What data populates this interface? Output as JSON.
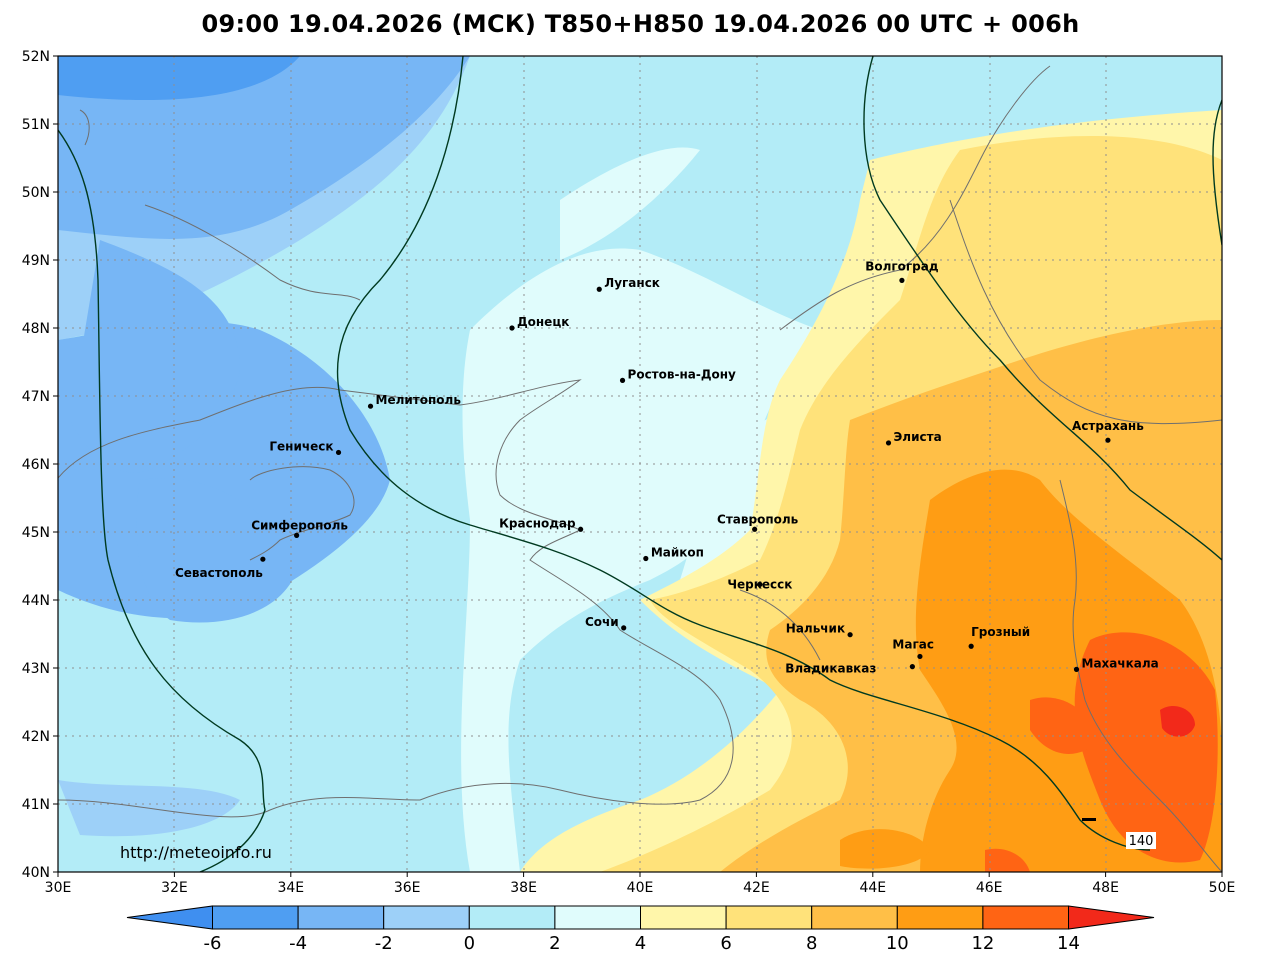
{
  "title": "09:00 19.04.2026 (МСК) T850+H850 19.04.2026 00 UTC + 006h",
  "source_url": "http://meteoinfo.ru",
  "contour_label": "140",
  "lat_ticks": [
    "52N",
    "51N",
    "50N",
    "49N",
    "48N",
    "47N",
    "46N",
    "45N",
    "44N",
    "43N",
    "42N",
    "41N",
    "40N"
  ],
  "lon_ticks": [
    "30E",
    "32E",
    "34E",
    "36E",
    "38E",
    "40E",
    "42E",
    "44E",
    "46E",
    "48E",
    "50E"
  ],
  "extent": {
    "lon_min": 30,
    "lon_max": 50,
    "lat_min": 40,
    "lat_max": 52
  },
  "colorbar": {
    "labels": [
      "-6",
      "-4",
      "-2",
      "0",
      "2",
      "4",
      "6",
      "8",
      "10",
      "12",
      "14"
    ],
    "colors": [
      "#3f8ff0",
      "#4f9ef2",
      "#77b6f5",
      "#9dd0f8",
      "#b3ecf7",
      "#e0fcfc",
      "#fff6aa",
      "#ffe27a",
      "#ffbf47",
      "#ff9d14",
      "#ff6414",
      "#f2291a"
    ]
  },
  "cities": [
    {
      "name": "Волгоград",
      "lon": 44.5,
      "lat": 48.7
    },
    {
      "name": "Луганск",
      "lon": 39.3,
      "lat": 48.57
    },
    {
      "name": "Донецк",
      "lon": 37.8,
      "lat": 48.0
    },
    {
      "name": "Ростов-на-Дону",
      "lon": 39.7,
      "lat": 47.23
    },
    {
      "name": "Мелитополь",
      "lon": 35.37,
      "lat": 46.85
    },
    {
      "name": "Геническ",
      "lon": 34.82,
      "lat": 46.17
    },
    {
      "name": "Элиста",
      "lon": 44.27,
      "lat": 46.31
    },
    {
      "name": "Астрахань",
      "lon": 48.04,
      "lat": 46.35
    },
    {
      "name": "Краснодар",
      "lon": 38.98,
      "lat": 45.04
    },
    {
      "name": "Ставрополь",
      "lon": 41.97,
      "lat": 45.04
    },
    {
      "name": "Симферополь",
      "lon": 34.1,
      "lat": 44.95
    },
    {
      "name": "Майкоп",
      "lon": 40.1,
      "lat": 44.61
    },
    {
      "name": "Севастополь",
      "lon": 33.52,
      "lat": 44.6
    },
    {
      "name": "Черкесск",
      "lon": 42.06,
      "lat": 44.23
    },
    {
      "name": "Сочи",
      "lon": 39.72,
      "lat": 43.59
    },
    {
      "name": "Нальчик",
      "lon": 43.61,
      "lat": 43.49
    },
    {
      "name": "Грозный",
      "lon": 45.69,
      "lat": 43.32
    },
    {
      "name": "Магас",
      "lon": 44.81,
      "lat": 43.17
    },
    {
      "name": "Владикавказ",
      "lon": 44.68,
      "lat": 43.02
    },
    {
      "name": "Махачкала",
      "lon": 47.5,
      "lat": 42.98
    }
  ]
}
